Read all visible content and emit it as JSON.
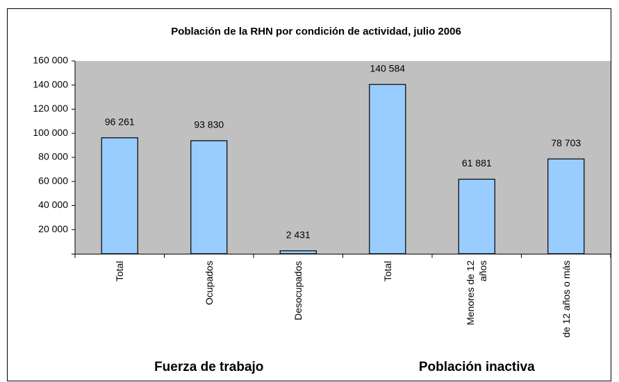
{
  "chart_data": {
    "type": "bar",
    "title": "Población de la RHN por condición de actividad, julio 2006",
    "categories": [
      "Total",
      "Ocupados",
      "Desocupados",
      "Total",
      "Menores de 12 años",
      "de 12 años o más"
    ],
    "values": [
      96261,
      93830,
      2431,
      140584,
      61881,
      78703
    ],
    "value_labels": [
      "96 261",
      "93 830",
      "2 431",
      "140 584",
      "61 881",
      "78 703"
    ],
    "color": "#99ccff",
    "plot_background": "#c0c0c0",
    "ylim": [
      0,
      160000
    ],
    "yticks": [
      {
        "value": 20000,
        "label": "20 000"
      },
      {
        "value": 40000,
        "label": "40 000"
      },
      {
        "value": 60000,
        "label": "60 000"
      },
      {
        "value": 80000,
        "label": "80 000"
      },
      {
        "value": 100000,
        "label": "100 000"
      },
      {
        "value": 120000,
        "label": "120 000"
      },
      {
        "value": 140000,
        "label": "140 000"
      },
      {
        "value": 160000,
        "label": "160 000"
      }
    ],
    "annotations": [
      "Fuerza de trabajo",
      "Población inactiva"
    ]
  }
}
